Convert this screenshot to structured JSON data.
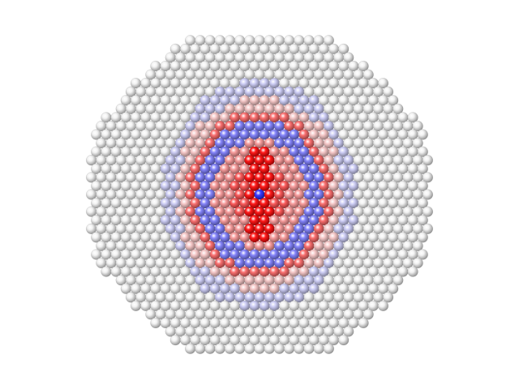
{
  "figure": {
    "title": "",
    "caption": "",
    "subject": "close-packed-atom-cluster",
    "palette": {
      "background": "#ffffff",
      "neutral": "#f2f2f2",
      "neutral_shade": "#8c8c8c",
      "positive_strong": "#ff1a1a",
      "positive_shade": "#8a0000",
      "negative_strong": "#3b3bff",
      "negative_shade": "#14148a"
    },
    "color_scale": [
      "negative",
      "neutral",
      "positive"
    ]
  }
}
